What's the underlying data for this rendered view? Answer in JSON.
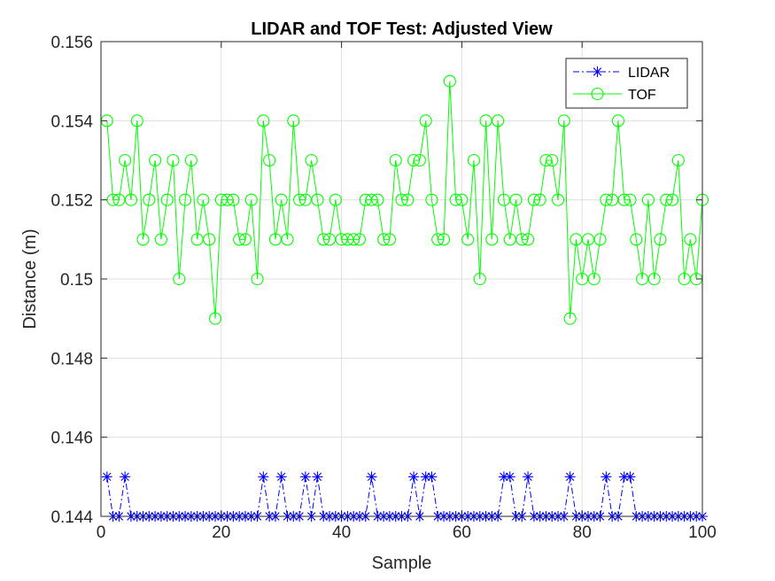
{
  "chart_data": {
    "type": "line",
    "title": "LIDAR and TOF Test: Adjusted View",
    "xlabel": "Sample",
    "ylabel": "Distance (m)",
    "xlim": [
      0,
      100
    ],
    "ylim": [
      0.144,
      0.156
    ],
    "xticks": [
      0,
      20,
      40,
      60,
      80,
      100
    ],
    "xtick_labels": [
      "0",
      "20",
      "40",
      "60",
      "80",
      "100"
    ],
    "yticks": [
      0.144,
      0.146,
      0.148,
      0.15,
      0.152,
      0.154,
      0.156
    ],
    "ytick_labels": [
      "0.144",
      "0.146",
      "0.148",
      "0.15",
      "0.152",
      "0.154",
      "0.156"
    ],
    "grid": true,
    "legend_position": "top-right",
    "series": [
      {
        "name": "LIDAR",
        "color": "#0000ff",
        "line_style": "dash-dot",
        "marker": "asterisk",
        "x": [
          1,
          2,
          3,
          4,
          5,
          6,
          7,
          8,
          9,
          10,
          11,
          12,
          13,
          14,
          15,
          16,
          17,
          18,
          19,
          20,
          21,
          22,
          23,
          24,
          25,
          26,
          27,
          28,
          29,
          30,
          31,
          32,
          33,
          34,
          35,
          36,
          37,
          38,
          39,
          40,
          41,
          42,
          43,
          44,
          45,
          46,
          47,
          48,
          49,
          50,
          51,
          52,
          53,
          54,
          55,
          56,
          57,
          58,
          59,
          60,
          61,
          62,
          63,
          64,
          65,
          66,
          67,
          68,
          69,
          70,
          71,
          72,
          73,
          74,
          75,
          76,
          77,
          78,
          79,
          80,
          81,
          82,
          83,
          84,
          85,
          86,
          87,
          88,
          89,
          90,
          91,
          92,
          93,
          94,
          95,
          96,
          97,
          98,
          99,
          100
        ],
        "y": [
          0.145,
          0.144,
          0.144,
          0.145,
          0.144,
          0.144,
          0.144,
          0.144,
          0.144,
          0.144,
          0.144,
          0.144,
          0.144,
          0.144,
          0.144,
          0.144,
          0.144,
          0.144,
          0.144,
          0.144,
          0.144,
          0.144,
          0.144,
          0.144,
          0.144,
          0.144,
          0.145,
          0.144,
          0.144,
          0.145,
          0.144,
          0.144,
          0.144,
          0.145,
          0.144,
          0.145,
          0.144,
          0.144,
          0.144,
          0.144,
          0.144,
          0.144,
          0.144,
          0.144,
          0.145,
          0.144,
          0.144,
          0.144,
          0.144,
          0.144,
          0.144,
          0.145,
          0.144,
          0.145,
          0.145,
          0.144,
          0.144,
          0.144,
          0.144,
          0.144,
          0.144,
          0.144,
          0.144,
          0.144,
          0.144,
          0.144,
          0.145,
          0.145,
          0.144,
          0.144,
          0.145,
          0.144,
          0.144,
          0.144,
          0.144,
          0.144,
          0.144,
          0.145,
          0.144,
          0.144,
          0.144,
          0.144,
          0.144,
          0.145,
          0.144,
          0.144,
          0.145,
          0.145,
          0.144,
          0.144,
          0.144,
          0.144,
          0.144,
          0.144,
          0.144,
          0.144,
          0.144,
          0.144,
          0.144,
          0.144
        ]
      },
      {
        "name": "TOF",
        "color": "#00ff00",
        "line_style": "solid",
        "marker": "circle",
        "x": [
          1,
          2,
          3,
          4,
          5,
          6,
          7,
          8,
          9,
          10,
          11,
          12,
          13,
          14,
          15,
          16,
          17,
          18,
          19,
          20,
          21,
          22,
          23,
          24,
          25,
          26,
          27,
          28,
          29,
          30,
          31,
          32,
          33,
          34,
          35,
          36,
          37,
          38,
          39,
          40,
          41,
          42,
          43,
          44,
          45,
          46,
          47,
          48,
          49,
          50,
          51,
          52,
          53,
          54,
          55,
          56,
          57,
          58,
          59,
          60,
          61,
          62,
          63,
          64,
          65,
          66,
          67,
          68,
          69,
          70,
          71,
          72,
          73,
          74,
          75,
          76,
          77,
          78,
          79,
          80,
          81,
          82,
          83,
          84,
          85,
          86,
          87,
          88,
          89,
          90,
          91,
          92,
          93,
          94,
          95,
          96,
          97,
          98,
          99,
          100
        ],
        "y": [
          0.154,
          0.152,
          0.152,
          0.153,
          0.152,
          0.154,
          0.151,
          0.152,
          0.153,
          0.151,
          0.152,
          0.153,
          0.15,
          0.152,
          0.153,
          0.151,
          0.152,
          0.151,
          0.149,
          0.152,
          0.152,
          0.152,
          0.151,
          0.151,
          0.152,
          0.15,
          0.154,
          0.153,
          0.151,
          0.152,
          0.151,
          0.154,
          0.152,
          0.152,
          0.153,
          0.152,
          0.151,
          0.151,
          0.152,
          0.151,
          0.151,
          0.151,
          0.151,
          0.152,
          0.152,
          0.152,
          0.151,
          0.151,
          0.153,
          0.152,
          0.152,
          0.153,
          0.153,
          0.154,
          0.152,
          0.151,
          0.151,
          0.155,
          0.152,
          0.152,
          0.151,
          0.153,
          0.15,
          0.154,
          0.151,
          0.154,
          0.152,
          0.151,
          0.152,
          0.151,
          0.151,
          0.152,
          0.152,
          0.153,
          0.153,
          0.152,
          0.154,
          0.149,
          0.151,
          0.15,
          0.151,
          0.15,
          0.151,
          0.152,
          0.152,
          0.154,
          0.152,
          0.152,
          0.151,
          0.15,
          0.152,
          0.15,
          0.151,
          0.152,
          0.152,
          0.153,
          0.15,
          0.151,
          0.15,
          0.152
        ]
      }
    ]
  }
}
